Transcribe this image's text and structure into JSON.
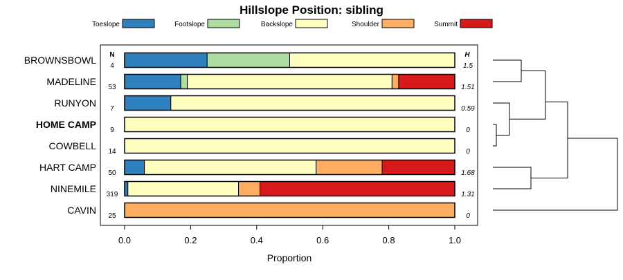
{
  "chart_data": {
    "type": "bar",
    "orientation": "horizontal",
    "stacked": true,
    "title": "Hillslope Position: sibling",
    "xlabel": "Proportion",
    "xlim": [
      0,
      1
    ],
    "x_ticks": [
      0.0,
      0.2,
      0.4,
      0.6,
      0.8,
      1.0
    ],
    "x_tick_labels": [
      "0.0",
      "0.2",
      "0.4",
      "0.6",
      "0.8",
      "1.0"
    ],
    "n_header": "N",
    "h_header": "H",
    "categories": [
      "BROWNSBOWL",
      "MADELINE",
      "RUNYON",
      "HOME CAMP",
      "COWBELL",
      "HART CAMP",
      "NINEMILE",
      "CAVIN"
    ],
    "highlight_category": "HOME CAMP",
    "n": [
      "4",
      "53",
      "7",
      "9",
      "14",
      "50",
      "319",
      "25"
    ],
    "h": [
      "1.5",
      "1.51",
      "0.59",
      "0",
      "0",
      "1.68",
      "1.31",
      "0"
    ],
    "series": [
      {
        "name": "Toeslope",
        "color": "#2f81bd",
        "values": [
          0.25,
          0.17,
          0.14,
          0,
          0,
          0.06,
          0.01,
          0
        ]
      },
      {
        "name": "Footslope",
        "color": "#addda0",
        "values": [
          0.25,
          0.02,
          0,
          0,
          0,
          0,
          0,
          0
        ]
      },
      {
        "name": "Backslope",
        "color": "#ffffbf",
        "values": [
          0.5,
          0.62,
          0.86,
          1.0,
          1.0,
          0.52,
          0.335,
          0
        ]
      },
      {
        "name": "Shoulder",
        "color": "#fdae61",
        "values": [
          0,
          0.02,
          0,
          0,
          0,
          0.2,
          0.065,
          1.0
        ]
      },
      {
        "name": "Summit",
        "color": "#d7191c",
        "values": [
          0,
          0.17,
          0,
          0,
          0,
          0.22,
          0.59,
          0
        ]
      }
    ],
    "legend_position": "top",
    "dendrogram": "right"
  }
}
